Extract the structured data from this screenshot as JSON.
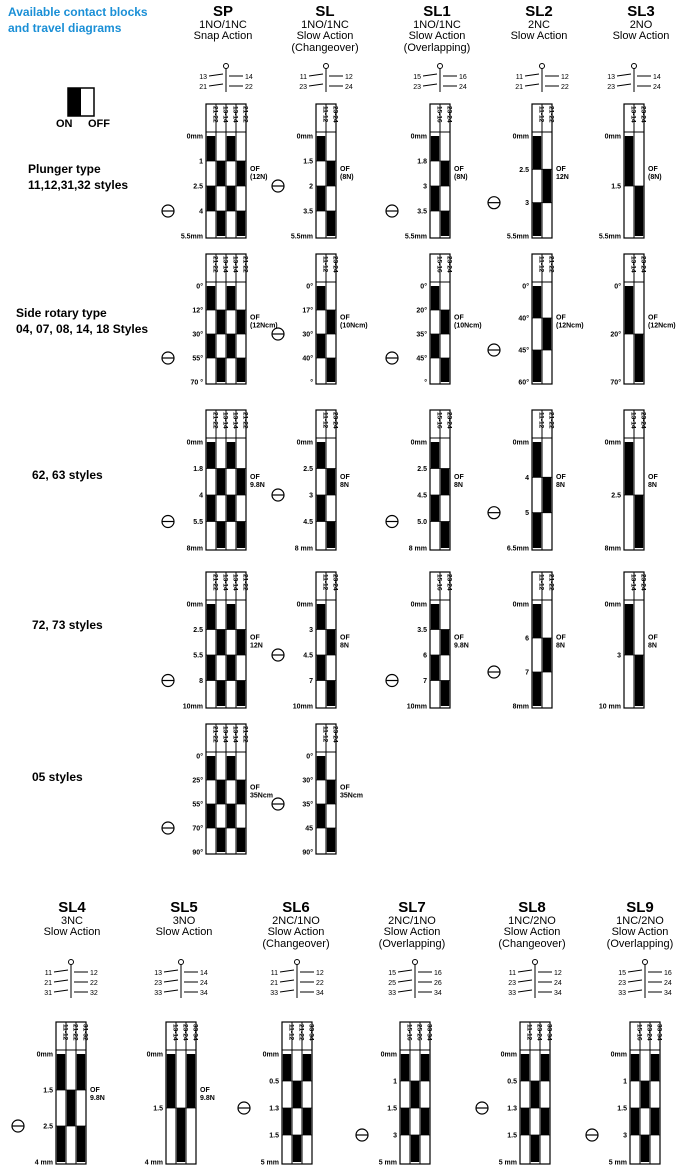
{
  "title_lines": [
    "Available contact blocks",
    "and travel diagrams"
  ],
  "legend": {
    "on": "ON",
    "off": "OFF"
  },
  "columns": [
    {
      "code": "SP",
      "lines": [
        "1NO/1NC",
        "Snap Action"
      ],
      "terms": [
        [
          "13",
          "14"
        ],
        [
          "21",
          "22"
        ]
      ],
      "headers": [
        "21-22",
        "13-14",
        "13-14",
        "21-22"
      ]
    },
    {
      "code": "SL",
      "lines": [
        "1NO/1NC",
        "Slow Action",
        "(Changeover)"
      ],
      "terms": [
        [
          "11",
          "12"
        ],
        [
          "23",
          "24"
        ]
      ],
      "headers": [
        "11-12",
        "23-24"
      ]
    },
    {
      "code": "SL1",
      "lines": [
        "1NO/1NC",
        "Slow Action",
        "(Overlapping)"
      ],
      "terms": [
        [
          "15",
          "16"
        ],
        [
          "23",
          "24"
        ]
      ],
      "headers": [
        "15-16",
        "23-24"
      ]
    },
    {
      "code": "SL2",
      "lines": [
        "2NC",
        "Slow Action"
      ],
      "terms": [
        [
          "11",
          "12"
        ],
        [
          "21",
          "22"
        ]
      ],
      "headers": [
        "11-12",
        "21-22"
      ]
    },
    {
      "code": "SL3",
      "lines": [
        "2NO",
        "Slow Action"
      ],
      "terms": [
        [
          "13",
          "14"
        ],
        [
          "23",
          "24"
        ]
      ],
      "headers": [
        "13-14",
        "23-24"
      ]
    }
  ],
  "row_labels": [
    [
      "Plunger type",
      "11,12,31,32 styles"
    ],
    [
      "Side rotary type",
      "04, 07, 08, 14, 18 Styles"
    ],
    [
      "62, 63 styles"
    ],
    [
      "72, 73 styles"
    ],
    [
      "05 styles"
    ]
  ],
  "diagrams": [
    [
      {
        "ticks": [
          "0mm",
          "1",
          "2.5",
          "4",
          "5.5mm"
        ],
        "mark": "4",
        "of": [
          "OF",
          "(12N)"
        ]
      },
      {
        "ticks": [
          "0mm",
          "1.5",
          "2",
          "3.5",
          "5.5mm"
        ],
        "mark": "2",
        "of": [
          "OF",
          "(8N)"
        ]
      },
      {
        "ticks": [
          "0mm",
          "1.8",
          "3",
          "3.5",
          "5.5mm"
        ],
        "mark": "3.5",
        "of": [
          "OF",
          "(8N)"
        ]
      },
      {
        "ticks": [
          "0mm",
          "2.5",
          "3",
          "5.5mm"
        ],
        "mark": "3",
        "of": [
          "OF",
          "12N"
        ]
      },
      {
        "ticks": [
          "0mm",
          "1.5",
          "5.5mm"
        ],
        "mark": "",
        "of": [
          "OF",
          "(8N)"
        ]
      }
    ],
    [
      {
        "ticks": [
          "0°",
          "12°",
          "30°",
          "55°",
          "70 °"
        ],
        "mark": "55°",
        "of": [
          "OF",
          "(12Ncm)"
        ]
      },
      {
        "ticks": [
          "0°",
          "17°",
          "30°",
          "40°",
          "°"
        ],
        "mark": "30°",
        "of": [
          "OF",
          "(10Ncm)"
        ]
      },
      {
        "ticks": [
          "0°",
          "20°",
          "35°",
          "45°",
          "°"
        ],
        "mark": "45°",
        "of": [
          "OF",
          "(10Ncm)"
        ]
      },
      {
        "ticks": [
          "0°",
          "40°",
          "45°",
          "60°"
        ],
        "mark": "45°",
        "of": [
          "OF",
          "(12Ncm)"
        ]
      },
      {
        "ticks": [
          "0°",
          "20°",
          "70°"
        ],
        "mark": "",
        "of": [
          "OF",
          "(12Ncm)"
        ]
      }
    ],
    [
      {
        "ticks": [
          "0mm",
          "1.8",
          "4",
          "5.5",
          "8mm"
        ],
        "mark": "5.5",
        "of": [
          "OF",
          "9.8N"
        ]
      },
      {
        "ticks": [
          "0mm",
          "2.5",
          "3",
          "4.5",
          "8 mm"
        ],
        "mark": "3",
        "of": [
          "OF",
          "8N"
        ]
      },
      {
        "ticks": [
          "0mm",
          "2.5",
          "4.5",
          "5.0",
          "8 mm"
        ],
        "mark": "5.0",
        "of": [
          "OF",
          "8N"
        ]
      },
      {
        "ticks": [
          "0mm",
          "4",
          "5",
          "6.5mm"
        ],
        "mark": "5",
        "of": [
          "OF",
          "8N"
        ]
      },
      {
        "ticks": [
          "0mm",
          "2.5",
          "8mm"
        ],
        "mark": "",
        "of": [
          "OF",
          "8N"
        ]
      }
    ],
    [
      {
        "ticks": [
          "0mm",
          "2.5",
          "5.5",
          "8",
          "10mm"
        ],
        "mark": "8",
        "of": [
          "OF",
          "12N"
        ]
      },
      {
        "ticks": [
          "0mm",
          "3",
          "4.5",
          "7",
          "10mm"
        ],
        "mark": "4.5",
        "of": [
          "OF",
          "8N"
        ]
      },
      {
        "ticks": [
          "0mm",
          "3.5",
          "6",
          "7",
          "10mm"
        ],
        "mark": "7",
        "of": [
          "OF",
          "9.8N"
        ]
      },
      {
        "ticks": [
          "0mm",
          "6",
          "7",
          "8mm"
        ],
        "mark": "7",
        "of": [
          "OF",
          "8N"
        ]
      },
      {
        "ticks": [
          "0mm",
          "3",
          "10 mm"
        ],
        "mark": "",
        "of": [
          "OF",
          "8N"
        ]
      }
    ],
    [
      {
        "ticks": [
          "0°",
          "25°",
          "55°",
          "70°",
          "90°"
        ],
        "mark": "70°",
        "of": [
          "OF",
          "35Ncm"
        ]
      },
      {
        "ticks": [
          "0°",
          "30°",
          "35°",
          "45",
          "90°"
        ],
        "mark": "35°",
        "of": [
          "OF",
          "35Ncm"
        ]
      }
    ]
  ],
  "bottom_columns": [
    {
      "code": "SL4",
      "lines": [
        "3NC",
        "Slow Action"
      ],
      "terms": [
        [
          "11",
          "12"
        ],
        [
          "21",
          "22"
        ],
        [
          "31",
          "32"
        ]
      ],
      "headers": [
        "11-12",
        "21-22",
        "31-32"
      ],
      "ticks": [
        "0mm",
        "1.5",
        "2.5",
        "4 mm"
      ],
      "mark": "2.5",
      "of": [
        "OF",
        "9.8N"
      ]
    },
    {
      "code": "SL5",
      "lines": [
        "3NO",
        "Slow Action"
      ],
      "terms": [
        [
          "13",
          "14"
        ],
        [
          "23",
          "24"
        ],
        [
          "33",
          "34"
        ]
      ],
      "headers": [
        "13-14",
        "23-24",
        "33-34"
      ],
      "ticks": [
        "0mm",
        "1.5",
        "4 mm"
      ],
      "mark": "",
      "of": [
        "OF",
        "9.8N"
      ]
    },
    {
      "code": "SL6",
      "lines": [
        "2NC/1NO",
        "Slow Action",
        "(Changeover)"
      ],
      "terms": [
        [
          "11",
          "12"
        ],
        [
          "21",
          "22"
        ],
        [
          "33",
          "34"
        ]
      ],
      "headers": [
        "11-12",
        "21-22",
        "33-34"
      ],
      "ticks": [
        "0mm",
        "0.5",
        "1.3",
        "1.5",
        "5 mm"
      ],
      "mark": "1.3",
      "of": []
    },
    {
      "code": "SL7",
      "lines": [
        "2NC/1NO",
        "Slow Action",
        "(Overlapping)"
      ],
      "terms": [
        [
          "15",
          "16"
        ],
        [
          "25",
          "26"
        ],
        [
          "33",
          "34"
        ]
      ],
      "headers": [
        "15-16",
        "25-26",
        "33-34"
      ],
      "ticks": [
        "0mm",
        "1",
        "1.5",
        "3",
        "5 mm"
      ],
      "mark": "3",
      "of": []
    },
    {
      "code": "SL8",
      "lines": [
        "1NC/2NO",
        "Slow Action",
        "(Changeover)"
      ],
      "terms": [
        [
          "11",
          "12"
        ],
        [
          "23",
          "24"
        ],
        [
          "33",
          "34"
        ]
      ],
      "headers": [
        "11-12",
        "23-24",
        "33-34"
      ],
      "ticks": [
        "0mm",
        "0.5",
        "1.3",
        "1.5",
        "5 mm"
      ],
      "mark": "1.3",
      "of": []
    },
    {
      "code": "SL9",
      "lines": [
        "1NC/2NO",
        "Slow Action",
        "(Overlapping)"
      ],
      "terms": [
        [
          "15",
          "16"
        ],
        [
          "23",
          "24"
        ],
        [
          "33",
          "34"
        ]
      ],
      "headers": [
        "15-16",
        "23-24",
        "33-34"
      ],
      "ticks": [
        "0mm",
        "1",
        "1.5",
        "3",
        "5 mm"
      ],
      "mark": "3",
      "of": []
    }
  ]
}
